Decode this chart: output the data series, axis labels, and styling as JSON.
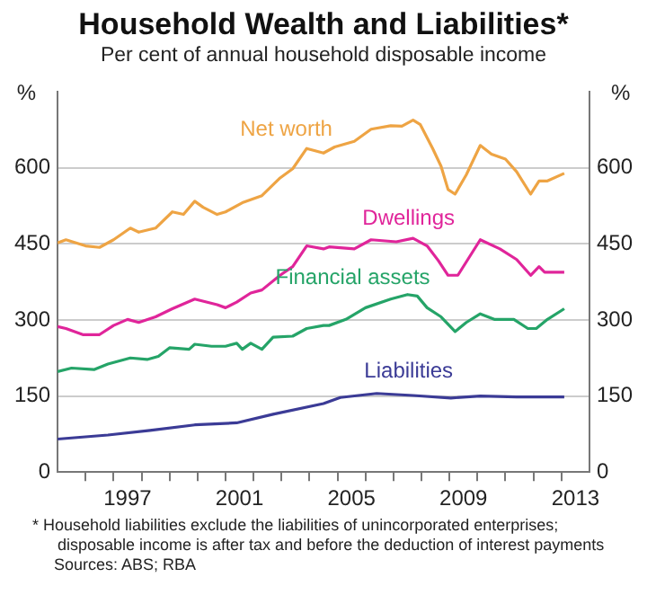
{
  "chart_data": {
    "type": "line",
    "title": "Household Wealth and Liabilities*",
    "subtitle": "Per cent of annual household disposable income",
    "ylabel": "%",
    "y2label": "%",
    "xlim": [
      1995,
      2014
    ],
    "xticks": [
      {
        "value": 1996,
        "label": null
      },
      {
        "value": 1997,
        "label": null
      },
      {
        "value": 1997.5,
        "label": "1997"
      },
      {
        "value": 1998,
        "label": null
      },
      {
        "value": 1999,
        "label": null
      },
      {
        "value": 2000,
        "label": null
      },
      {
        "value": 2001,
        "label": null
      },
      {
        "value": 2001.5,
        "label": "2001"
      },
      {
        "value": 2002,
        "label": null
      },
      {
        "value": 2003,
        "label": null
      },
      {
        "value": 2004,
        "label": null
      },
      {
        "value": 2005,
        "label": null
      },
      {
        "value": 2005.5,
        "label": "2005"
      },
      {
        "value": 2006,
        "label": null
      },
      {
        "value": 2007,
        "label": null
      },
      {
        "value": 2008,
        "label": null
      },
      {
        "value": 2009,
        "label": null
      },
      {
        "value": 2009.5,
        "label": "2009"
      },
      {
        "value": 2010,
        "label": null
      },
      {
        "value": 2011,
        "label": null
      },
      {
        "value": 2012,
        "label": null
      },
      {
        "value": 2013,
        "label": null
      },
      {
        "value": 2013.5,
        "label": "2013"
      }
    ],
    "ylim": [
      0,
      750
    ],
    "yticks": [
      0,
      150,
      300,
      450,
      600
    ],
    "y2lim": [
      0,
      750
    ],
    "y2ticks": [
      0,
      150,
      300,
      450,
      600
    ],
    "grid": "y",
    "legend": false,
    "series": [
      {
        "name": "Net worth",
        "color": "#eea444",
        "x": [
          1995.0,
          1995.3,
          1996.0,
          1996.5,
          1997.0,
          1997.6,
          1997.9,
          1998.5,
          1999.1,
          1999.5,
          1999.9,
          2000.2,
          2000.7,
          2001.0,
          2001.6,
          2002.3,
          2002.95,
          2003.4,
          2003.9,
          2004.5,
          2004.9,
          2005.6,
          2006.2,
          2006.9,
          2007.3,
          2007.7,
          2007.96,
          2008.4,
          2008.7,
          2008.95,
          2009.2,
          2009.6,
          2010.1,
          2010.5,
          2011.0,
          2011.4,
          2011.9,
          2012.2,
          2012.5,
          2013.1
        ],
        "values": [
          452,
          458,
          446,
          443,
          458,
          481,
          473,
          481,
          513,
          508,
          534,
          522,
          508,
          513,
          531,
          545,
          580,
          598,
          638,
          629,
          641,
          652,
          676,
          683,
          682,
          694,
          685,
          638,
          603,
          557,
          548,
          586,
          644,
          627,
          617,
          592,
          548,
          574,
          574,
          589
        ]
      },
      {
        "name": "Dwellings",
        "color": "#e0259a",
        "x": [
          1995.0,
          1995.3,
          1995.9,
          1996.5,
          1997.0,
          1997.5,
          1997.9,
          1998.5,
          1999.1,
          1999.9,
          2000.7,
          2001.0,
          2001.4,
          2001.9,
          2002.3,
          2002.95,
          2003.4,
          2003.9,
          2004.5,
          2004.7,
          2005.6,
          2006.2,
          2007.1,
          2007.7,
          2008.2,
          2008.6,
          2008.95,
          2009.3,
          2009.7,
          2010.1,
          2010.8,
          2011.4,
          2011.9,
          2012.2,
          2012.4,
          2013.1
        ],
        "values": [
          287,
          283,
          271,
          271,
          289,
          301,
          295,
          306,
          322,
          341,
          330,
          324,
          335,
          353,
          359,
          388,
          405,
          446,
          440,
          444,
          440,
          458,
          454,
          461,
          446,
          417,
          388,
          388,
          423,
          458,
          440,
          419,
          388,
          405,
          394,
          394
        ]
      },
      {
        "name": "Financial assets",
        "color": "#25a468",
        "x": [
          1995.0,
          1995.5,
          1996.3,
          1996.8,
          1997.6,
          1998.2,
          1998.6,
          1999.0,
          1999.7,
          1999.9,
          2000.5,
          2001.0,
          2001.4,
          2001.6,
          2001.9,
          2002.3,
          2002.7,
          2003.4,
          2003.9,
          2004.5,
          2004.7,
          2005.3,
          2006.0,
          2006.9,
          2007.5,
          2007.85,
          2008.2,
          2008.7,
          2009.2,
          2009.6,
          2010.1,
          2010.6,
          2011.3,
          2011.8,
          2012.1,
          2012.5,
          2013.1
        ],
        "values": [
          198,
          205,
          202,
          213,
          225,
          222,
          228,
          245,
          242,
          252,
          248,
          248,
          254,
          242,
          254,
          242,
          266,
          268,
          283,
          289,
          289,
          301,
          324,
          341,
          350,
          347,
          324,
          306,
          277,
          295,
          312,
          301,
          301,
          283,
          283,
          301,
          322
        ]
      },
      {
        "name": "Liabilities",
        "color": "#3b3b96",
        "x": [
          1995.0,
          1996.8,
          1998.3,
          1999.9,
          2001.4,
          2002.7,
          2004.5,
          2005.1,
          2006.4,
          2007.7,
          2009.05,
          2010.1,
          2011.4,
          2013.1
        ],
        "values": [
          65,
          73,
          82,
          93,
          97,
          114,
          135,
          147,
          155,
          151,
          146,
          150,
          148,
          148
        ]
      }
    ],
    "annotations": [
      "* Household liabilities exclude the liabilities of unincorporated enterprises; disposable income is after tax and before the deduction of interest payments",
      "Sources: ABS; RBA"
    ]
  }
}
